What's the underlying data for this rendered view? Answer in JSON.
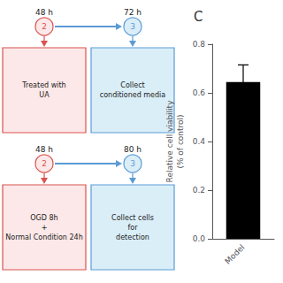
{
  "chart_data": {
    "type": "bar",
    "title": "C",
    "categories": [
      "Model"
    ],
    "values": [
      0.645
    ],
    "errors": [
      0.07
    ],
    "color": "#000000",
    "ylabel": "Relative cell viability\n(% of control)",
    "ylim": [
      0.0,
      0.8
    ],
    "yticks": [
      {
        "value": 0.0,
        "label": "0.0"
      },
      0.2,
      0.4,
      0.6,
      0.8
    ],
    "grid": false,
    "annotations": [
      "48 h",
      "72 h",
      "2",
      "3",
      "Treated with\nUA",
      "Collect\nconditioned media",
      "48 h",
      "80 h",
      "2",
      "3",
      "OGD 8h\n+\nNormal Condition 24h",
      "Collect cells\nfor\ndetection"
    ]
  }
}
